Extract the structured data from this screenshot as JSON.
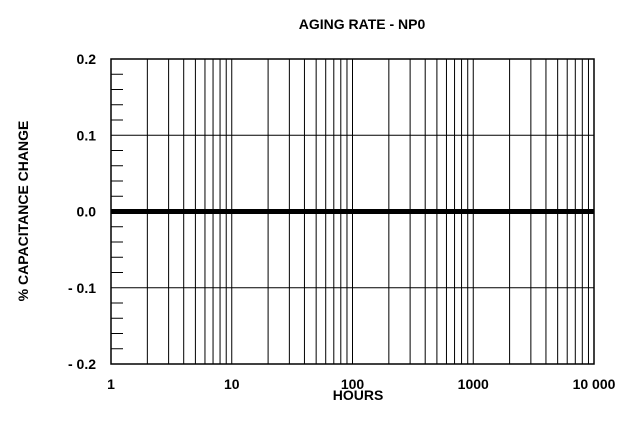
{
  "chart_data": {
    "type": "line",
    "title": "AGING RATE - NP0",
    "xlabel": "HOURS",
    "ylabel": "% CAPACITANCE CHANGE",
    "x_scale": "log",
    "xlim": [
      1,
      10000
    ],
    "ylim": [
      -0.2,
      0.2
    ],
    "x_ticks": [
      1,
      10,
      100,
      1000,
      10000
    ],
    "x_tick_labels": [
      "1",
      "10",
      "100",
      "1000",
      "10 000"
    ],
    "y_ticks": [
      0.2,
      0.1,
      0.0,
      -0.1,
      -0.2
    ],
    "y_tick_labels": [
      "0.2",
      "0.1",
      "0.0",
      "- 0.1",
      "- 0.2"
    ],
    "y_minor_step": 0.02,
    "grid": true,
    "series": [
      {
        "x": [
          1,
          10000
        ],
        "y": [
          0.0,
          0.0
        ]
      }
    ]
  }
}
